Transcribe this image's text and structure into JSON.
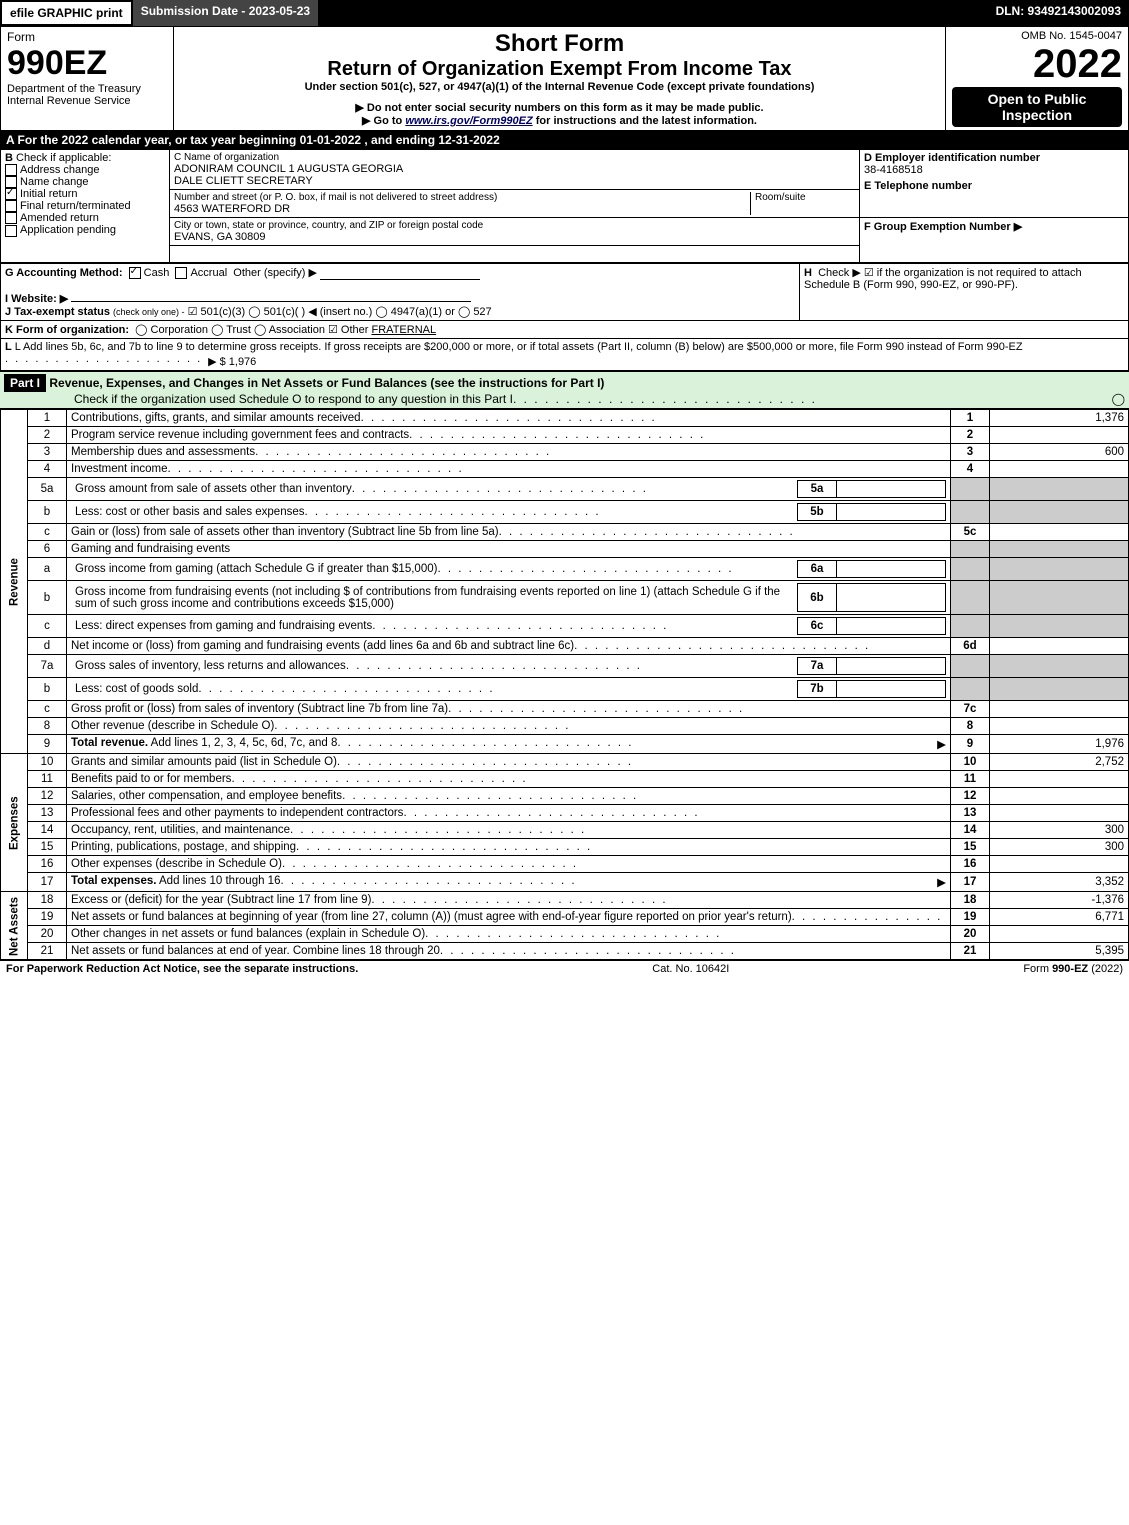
{
  "topbar": {
    "efile": "efile GRAPHIC print",
    "subdate": "Submission Date - 2023-05-23",
    "dln": "DLN: 93492143002093"
  },
  "header": {
    "form_label": "Form",
    "form_number": "990EZ",
    "dept": "Department of the Treasury\nInternal Revenue Service",
    "short_form": "Short Form",
    "title": "Return of Organization Exempt From Income Tax",
    "under": "Under section 501(c), 527, or 4947(a)(1) of the Internal Revenue Code (except private foundations)",
    "note1": "▶ Do not enter social security numbers on this form as it may be made public.",
    "note2_pre": "▶ Go to ",
    "note2_link": "www.irs.gov/Form990EZ",
    "note2_post": " for instructions and the latest information.",
    "omb": "OMB No. 1545-0047",
    "year": "2022",
    "open": "Open to Public Inspection"
  },
  "sectionA": "A  For the 2022 calendar year, or tax year beginning 01-01-2022 , and ending 12-31-2022",
  "boxB": {
    "label": "B",
    "heading": "Check if applicable:",
    "items": [
      {
        "label": "Address change",
        "checked": false
      },
      {
        "label": "Name change",
        "checked": false
      },
      {
        "label": "Initial return",
        "checked": true
      },
      {
        "label": "Final return/terminated",
        "checked": false
      },
      {
        "label": "Amended return",
        "checked": false
      },
      {
        "label": "Application pending",
        "checked": false
      }
    ]
  },
  "boxC": {
    "label": "C Name of organization",
    "name": "ADONIRAM COUNCIL 1 AUGUSTA GEORGIA\nDALE CLIETT SECRETARY",
    "addr_label": "Number and street (or P. O. box, if mail is not delivered to street address)",
    "addr": "4563 WATERFORD DR",
    "room_label": "Room/suite",
    "city_label": "City or town, state or province, country, and ZIP or foreign postal code",
    "city": "EVANS, GA  30809"
  },
  "boxD": {
    "label": "D Employer identification number",
    "value": "38-4168518"
  },
  "boxE": {
    "label": "E Telephone number",
    "value": ""
  },
  "boxF": {
    "label": "F Group Exemption Number   ▶",
    "value": ""
  },
  "boxG": {
    "label": "G Accounting Method:",
    "cash": "Cash",
    "accrual": "Accrual",
    "other": "Other (specify) ▶"
  },
  "boxH": {
    "label": "H",
    "text": "Check ▶ ☑ if the organization is not required to attach Schedule B (Form 990, 990-EZ, or 990-PF)."
  },
  "boxI": {
    "label": "I Website: ▶",
    "value": ""
  },
  "boxJ": {
    "label": "J Tax-exempt status",
    "sub": "(check only one) -",
    "text": "☑ 501(c)(3)  ◯ 501(c)( ) ◀ (insert no.)  ◯ 4947(a)(1) or  ◯ 527"
  },
  "boxK": {
    "label": "K Form of organization:",
    "text": "◯ Corporation   ◯ Trust   ◯ Association   ☑ Other",
    "other_val": "FRATERNAL"
  },
  "boxL": {
    "text": "L Add lines 5b, 6c, and 7b to line 9 to determine gross receipts. If gross receipts are $200,000 or more, or if total assets (Part II, column (B) below) are $500,000 or more, file Form 990 instead of Form 990-EZ",
    "arrow": "▶ $",
    "value": "1,976"
  },
  "part1": {
    "header_label": "Part I",
    "header_text": "Revenue, Expenses, and Changes in Net Assets or Fund Balances (see the instructions for Part I)",
    "check_line": "Check if the organization used Schedule O to respond to any question in this Part I",
    "check_box": "◯"
  },
  "sections": {
    "revenue_label": "Revenue",
    "expenses_label": "Expenses",
    "netassets_label": "Net Assets"
  },
  "lines": [
    {
      "n": "1",
      "desc": "Contributions, gifts, grants, and similar amounts received",
      "key": "1",
      "val": "1,376"
    },
    {
      "n": "2",
      "desc": "Program service revenue including government fees and contracts",
      "key": "2",
      "val": ""
    },
    {
      "n": "3",
      "desc": "Membership dues and assessments",
      "key": "3",
      "val": "600"
    },
    {
      "n": "4",
      "desc": "Investment income",
      "key": "4",
      "val": ""
    },
    {
      "n": "5a",
      "desc": "Gross amount from sale of assets other than inventory",
      "sub": "5a",
      "subval": "",
      "shade": true
    },
    {
      "n": "b",
      "desc": "Less: cost or other basis and sales expenses",
      "sub": "5b",
      "subval": "",
      "shade": true
    },
    {
      "n": "c",
      "desc": "Gain or (loss) from sale of assets other than inventory (Subtract line 5b from line 5a)",
      "key": "5c",
      "val": ""
    },
    {
      "n": "6",
      "desc": "Gaming and fundraising events",
      "shadefull": true
    },
    {
      "n": "a",
      "desc": "Gross income from gaming (attach Schedule G if greater than $15,000)",
      "sub": "6a",
      "subval": "",
      "shade": true
    },
    {
      "n": "b",
      "desc": "Gross income from fundraising events (not including $                     of contributions from fundraising events reported on line 1) (attach Schedule G if the sum of such gross income and contributions exceeds $15,000)",
      "sub": "6b",
      "subval": "",
      "shade": true
    },
    {
      "n": "c",
      "desc": "Less: direct expenses from gaming and fundraising events",
      "sub": "6c",
      "subval": "",
      "shade": true
    },
    {
      "n": "d",
      "desc": "Net income or (loss) from gaming and fundraising events (add lines 6a and 6b and subtract line 6c)",
      "key": "6d",
      "val": ""
    },
    {
      "n": "7a",
      "desc": "Gross sales of inventory, less returns and allowances",
      "sub": "7a",
      "subval": "",
      "shade": true
    },
    {
      "n": "b",
      "desc": "Less: cost of goods sold",
      "sub": "7b",
      "subval": "",
      "shade": true
    },
    {
      "n": "c",
      "desc": "Gross profit or (loss) from sales of inventory (Subtract line 7b from line 7a)",
      "key": "7c",
      "val": ""
    },
    {
      "n": "8",
      "desc": "Other revenue (describe in Schedule O)",
      "key": "8",
      "val": ""
    },
    {
      "n": "9",
      "desc": "Total revenue. Add lines 1, 2, 3, 4, 5c, 6d, 7c, and 8",
      "bold": true,
      "arrow": true,
      "key": "9",
      "val": "1,976"
    }
  ],
  "exp_lines": [
    {
      "n": "10",
      "desc": "Grants and similar amounts paid (list in Schedule O)",
      "key": "10",
      "val": "2,752"
    },
    {
      "n": "11",
      "desc": "Benefits paid to or for members",
      "key": "11",
      "val": ""
    },
    {
      "n": "12",
      "desc": "Salaries, other compensation, and employee benefits",
      "key": "12",
      "val": ""
    },
    {
      "n": "13",
      "desc": "Professional fees and other payments to independent contractors",
      "key": "13",
      "val": ""
    },
    {
      "n": "14",
      "desc": "Occupancy, rent, utilities, and maintenance",
      "key": "14",
      "val": "300"
    },
    {
      "n": "15",
      "desc": "Printing, publications, postage, and shipping",
      "key": "15",
      "val": "300"
    },
    {
      "n": "16",
      "desc": "Other expenses (describe in Schedule O)",
      "key": "16",
      "val": ""
    },
    {
      "n": "17",
      "desc": "Total expenses. Add lines 10 through 16",
      "bold": true,
      "arrow": true,
      "key": "17",
      "val": "3,352"
    }
  ],
  "na_lines": [
    {
      "n": "18",
      "desc": "Excess or (deficit) for the year (Subtract line 17 from line 9)",
      "key": "18",
      "val": "-1,376"
    },
    {
      "n": "19",
      "desc": "Net assets or fund balances at beginning of year (from line 27, column (A)) (must agree with end-of-year figure reported on prior year's return)",
      "key": "19",
      "val": "6,771"
    },
    {
      "n": "20",
      "desc": "Other changes in net assets or fund balances (explain in Schedule O)",
      "key": "20",
      "val": ""
    },
    {
      "n": "21",
      "desc": "Net assets or fund balances at end of year. Combine lines 18 through 20",
      "key": "21",
      "val": "5,395"
    }
  ],
  "footer": {
    "left": "For Paperwork Reduction Act Notice, see the separate instructions.",
    "mid": "Cat. No. 10642I",
    "right": "Form 990-EZ (2022)"
  },
  "colors": {
    "greenrow": "#d9f2d9",
    "shade": "#cccccc"
  }
}
